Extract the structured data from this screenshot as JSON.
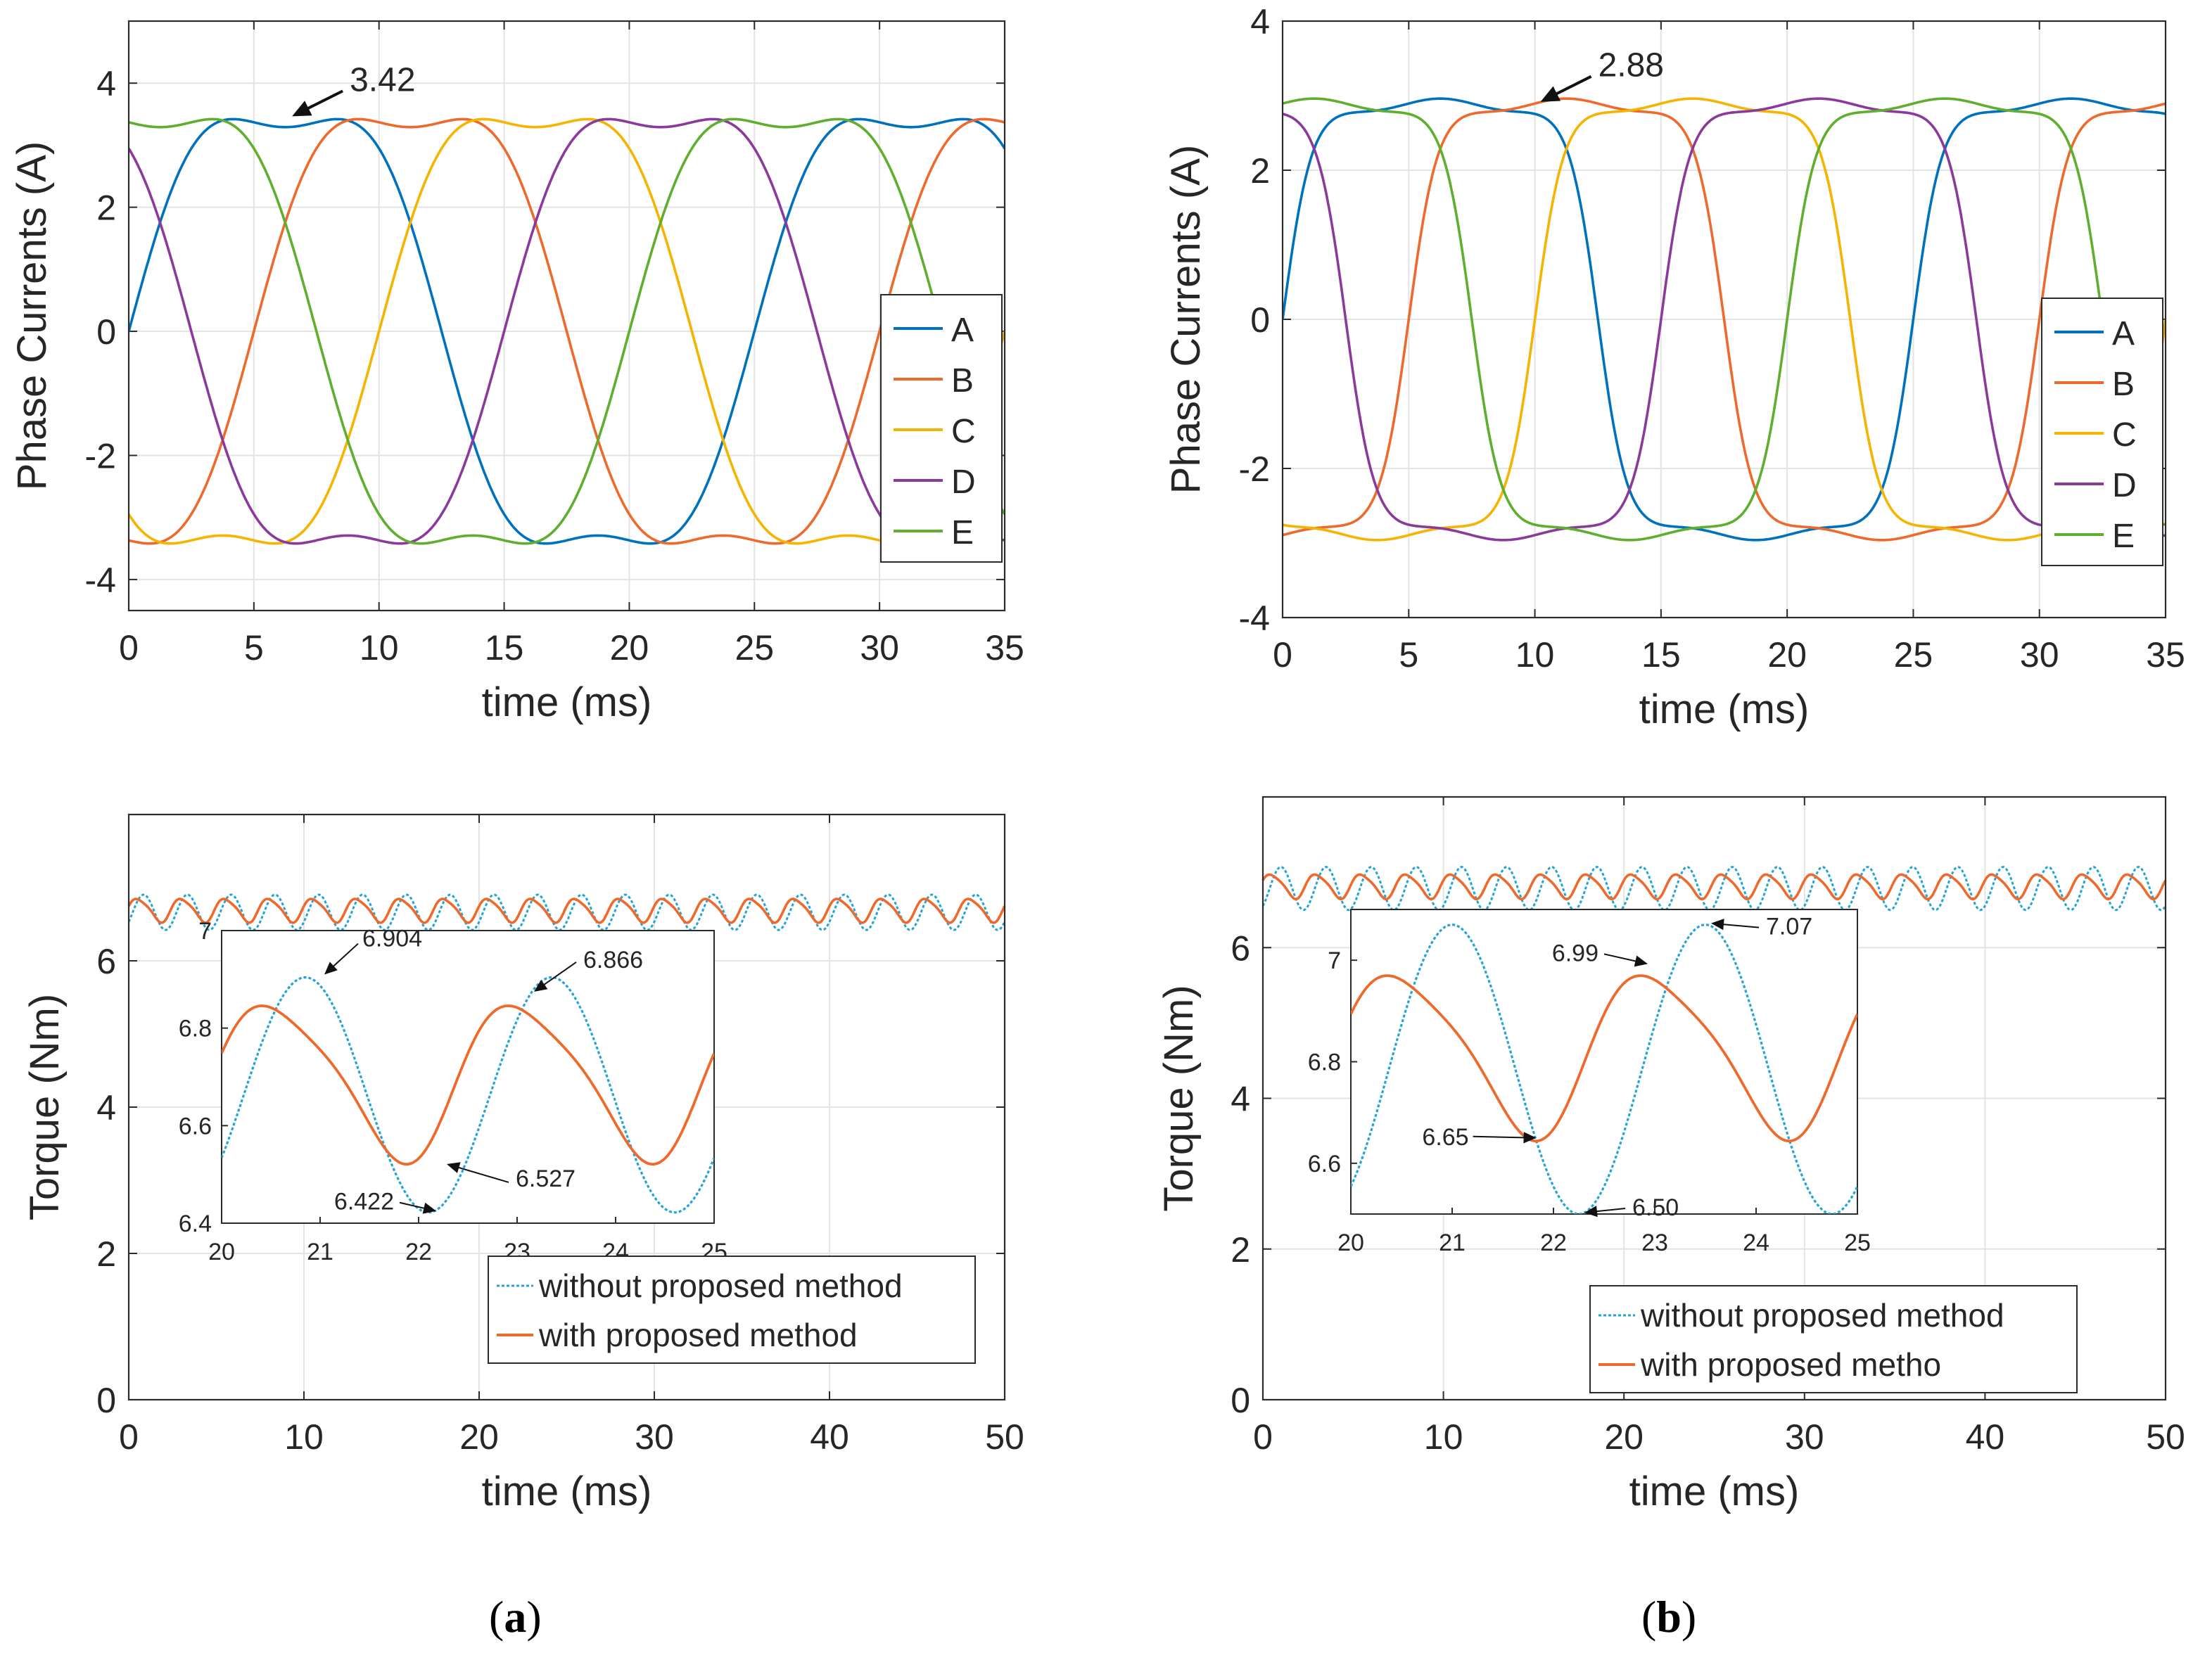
{
  "figure": {
    "panel_labels": [
      {
        "open": "(",
        "letter": "a",
        "close": ")"
      },
      {
        "open": "(",
        "letter": "b",
        "close": ")"
      }
    ]
  },
  "colors": {
    "A": "#0072BD",
    "B": "#EE6A2C",
    "C": "#F5B400",
    "D": "#8B3A9C",
    "E": "#5FAE2E",
    "with": "#EE6A2C",
    "without": "#22A4D8",
    "grid": "#E3E3E3",
    "axis": "#2b2b2b",
    "text": "#262626"
  },
  "chart_data": [
    {
      "id": "a_currents",
      "type": "line",
      "ylabel": "Phase Currents (A)",
      "xlabel": "time (ms)",
      "xlim": [
        0,
        35
      ],
      "ylim": [
        -4.5,
        5
      ],
      "xticks": [
        0,
        5,
        10,
        15,
        20,
        25,
        30,
        35
      ],
      "yticks": [
        -4,
        -2,
        0,
        2,
        4
      ],
      "legend": [
        "A",
        "B",
        "C",
        "D",
        "E"
      ],
      "legend_position": "right-middle",
      "waveform": "sinusoidal with 3rd harmonic",
      "period_ms": 25,
      "peak": 3.42,
      "phase_shift_deg": 72,
      "annotation": {
        "text": "3.42",
        "x": 6.3,
        "y": 3.42
      }
    },
    {
      "id": "b_currents",
      "type": "line",
      "ylabel": "Phase Currents (A)",
      "xlabel": "time (ms)",
      "xlim": [
        0,
        35
      ],
      "ylim": [
        -4,
        4
      ],
      "xticks": [
        0,
        5,
        10,
        15,
        20,
        25,
        30,
        35
      ],
      "yticks": [
        -4,
        -2,
        0,
        2,
        4
      ],
      "legend": [
        "A",
        "B",
        "C",
        "D",
        "E"
      ],
      "legend_position": "right-middle",
      "waveform": "trapezoidal",
      "period_ms": 25,
      "peak": 2.88,
      "phase_shift_deg": 72,
      "annotation": {
        "text": "2.88",
        "x": 10,
        "y": 2.88
      }
    },
    {
      "id": "a_torque",
      "type": "line",
      "ylabel": "Torque (Nm)",
      "xlabel": "time (ms)",
      "xlim": [
        0,
        50
      ],
      "ylim": [
        0,
        8
      ],
      "xticks": [
        0,
        10,
        20,
        30,
        40,
        50
      ],
      "yticks": [
        0,
        2,
        4,
        6
      ],
      "legend": [
        "without proposed method",
        "with proposed method"
      ],
      "legend_position": "bottom-right",
      "series": [
        {
          "name": "without proposed method",
          "style": "dotted",
          "min": 6.422,
          "max": 6.904,
          "ripple_period_ms": 2.5,
          "phase_ms": 0.85
        },
        {
          "name": "with proposed method",
          "style": "solid",
          "min": 6.527,
          "max": 6.866,
          "ripple_period_ms": 2.5,
          "phase_ms": 0.55
        }
      ],
      "inset": {
        "xlim": [
          20,
          25
        ],
        "ylim": [
          6.4,
          7.0
        ],
        "xticks": [
          20,
          21,
          22,
          23,
          24,
          25
        ],
        "yticks": [
          6.4,
          6.6,
          6.8,
          7
        ],
        "ytick_labels": [
          "6.4",
          "6.6",
          "6.8",
          "7"
        ],
        "annotations": [
          {
            "text": "6.904",
            "x": 21.0,
            "y": 6.904
          },
          {
            "text": "6.866",
            "x": 23.1,
            "y": 6.866
          },
          {
            "text": "6.527",
            "x": 22.2,
            "y": 6.527
          },
          {
            "text": "6.422",
            "x": 22.25,
            "y": 6.422
          }
        ]
      }
    },
    {
      "id": "b_torque",
      "type": "line",
      "ylabel": "Torque (Nm)",
      "xlabel": "time (ms)",
      "xlim": [
        0,
        50
      ],
      "ylim": [
        0,
        8
      ],
      "xticks": [
        0,
        10,
        20,
        30,
        40,
        50
      ],
      "yticks": [
        0,
        2,
        4,
        6
      ],
      "legend": [
        "without proposed method",
        "with proposed metho"
      ],
      "legend_position": "bottom-right",
      "series": [
        {
          "name": "without proposed method",
          "style": "dotted",
          "min": 6.5,
          "max": 7.07,
          "ripple_period_ms": 2.5,
          "phase_ms": 1.0
        },
        {
          "name": "with proposed metho",
          "style": "solid",
          "min": 6.65,
          "max": 6.99,
          "ripple_period_ms": 2.5,
          "phase_ms": 0.5
        }
      ],
      "inset": {
        "xlim": [
          20,
          25
        ],
        "ylim": [
          6.5,
          7.1
        ],
        "xticks": [
          20,
          21,
          22,
          23,
          24,
          25
        ],
        "yticks": [
          6.6,
          6.8,
          7
        ],
        "ytick_labels": [
          "6.6",
          "6.8",
          "7"
        ],
        "annotations": [
          {
            "text": "6.99",
            "x": 23.0,
            "y": 6.99
          },
          {
            "text": "7.07",
            "x": 23.5,
            "y": 7.07
          },
          {
            "text": "6.65",
            "x": 21.9,
            "y": 6.65
          },
          {
            "text": "6.50",
            "x": 22.25,
            "y": 6.5
          }
        ]
      }
    }
  ]
}
